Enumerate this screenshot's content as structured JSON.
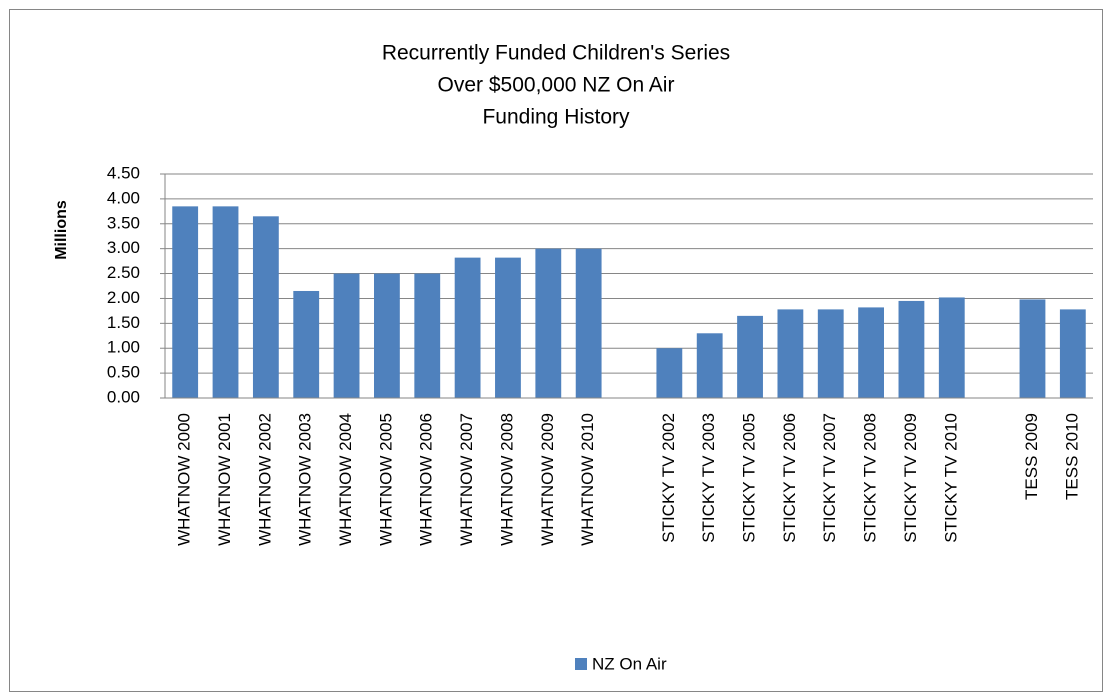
{
  "chart_data": {
    "type": "bar",
    "title": [
      "Recurrently Funded Children's Series",
      "Over $500,000  NZ On Air",
      "Funding History"
    ],
    "y_label": "Millions",
    "categories": [
      "WHATNOW 2000",
      "WHATNOW 2001",
      "WHATNOW 2002",
      "WHATNOW 2003",
      "WHATNOW 2004",
      "WHATNOW 2005",
      "WHATNOW 2006",
      "WHATNOW 2007",
      "WHATNOW 2008",
      "WHATNOW 2009",
      "WHATNOW 2010",
      null,
      "STICKY TV 2002",
      "STICKY TV 2003",
      "STICKY TV 2005",
      "STICKY TV 2006",
      "STICKY TV 2007",
      "STICKY TV 2008",
      "STICKY TV 2009",
      "STICKY TV 2010",
      null,
      "TESS 2009",
      "TESS 2010"
    ],
    "series": [
      {
        "name": "NZ On Air",
        "color": "#4f81bd",
        "values": [
          3.85,
          3.85,
          3.65,
          2.15,
          2.5,
          2.5,
          2.5,
          2.82,
          2.82,
          3.0,
          3.0,
          null,
          1.0,
          1.3,
          1.65,
          1.78,
          1.78,
          1.82,
          1.95,
          2.02,
          null,
          1.98,
          1.78
        ]
      }
    ],
    "ylim": [
      0,
      4.5
    ],
    "yticks": [
      {
        "value": 0,
        "label": "0.00"
      },
      {
        "value": 0.5,
        "label": "0.50"
      },
      {
        "value": 1,
        "label": "1.00"
      },
      {
        "value": 1.5,
        "label": "1.50"
      },
      {
        "value": 2,
        "label": "2.00"
      },
      {
        "value": 2.5,
        "label": "2.50"
      },
      {
        "value": 3,
        "label": "3.00"
      },
      {
        "value": 3.5,
        "label": "3.50"
      },
      {
        "value": 4,
        "label": "4.00"
      },
      {
        "value": 4.5,
        "label": "4.50"
      }
    ],
    "grid": true,
    "legend": "bottom"
  }
}
